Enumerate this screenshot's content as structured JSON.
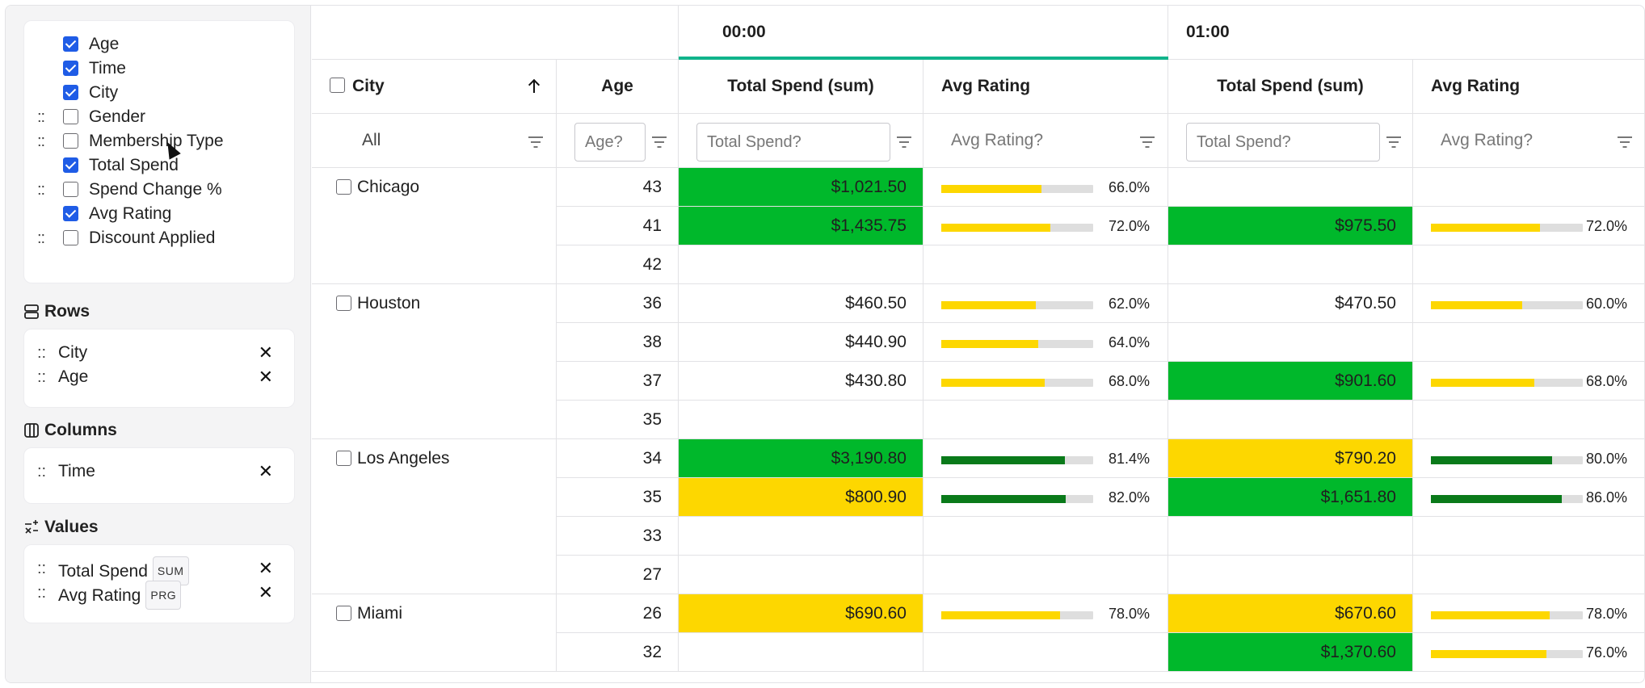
{
  "field_list": [
    {
      "label": "Age",
      "checked": true,
      "grip": false
    },
    {
      "label": "Time",
      "checked": true,
      "grip": false
    },
    {
      "label": "City",
      "checked": true,
      "grip": false
    },
    {
      "label": "Gender",
      "checked": false,
      "grip": true
    },
    {
      "label": "Membership Type",
      "checked": false,
      "grip": true
    },
    {
      "label": "Total Spend",
      "checked": true,
      "grip": false
    },
    {
      "label": "Spend Change %",
      "checked": false,
      "grip": true
    },
    {
      "label": "Avg Rating",
      "checked": true,
      "grip": false
    },
    {
      "label": "Discount Applied",
      "checked": false,
      "grip": true
    }
  ],
  "rows_section": {
    "title": "Rows",
    "items": [
      {
        "label": "City"
      },
      {
        "label": "Age"
      }
    ]
  },
  "columns_section": {
    "title": "Columns",
    "items": [
      {
        "label": "Time"
      }
    ]
  },
  "values_section": {
    "title": "Values",
    "items": [
      {
        "label": "Total Spend",
        "tag": "SUM"
      },
      {
        "label": "Avg Rating",
        "tag": "PRG"
      }
    ]
  },
  "grip_glyph": "::",
  "close_glyph": "✕",
  "grid": {
    "time_groups": [
      "00:00",
      "01:00"
    ],
    "headers": {
      "city": "City",
      "age": "Age",
      "total_spend": "Total Spend (sum)",
      "avg_rating": "Avg Rating"
    },
    "filters": {
      "city": "All",
      "age_placeholder": "Age?",
      "total_spend_placeholder": "Total Spend?",
      "avg_rating_placeholder": "Avg Rating?"
    },
    "colors": {
      "green": "#00b82b",
      "yellow": "#fdd700",
      "bar_yellow": "#fdd700",
      "bar_dark_green": "#0a7a1a",
      "accent": "#10b38b"
    },
    "cities": [
      {
        "name": "Chicago",
        "rows": [
          {
            "age": "43",
            "t0": {
              "spend": "$1,021.50",
              "hl": "green",
              "rating": "66.0%",
              "fill": 0.66,
              "bar": "yellow"
            },
            "t1": {
              "spend": "",
              "hl": "",
              "rating": "",
              "fill": 0,
              "bar": ""
            }
          },
          {
            "age": "41",
            "t0": {
              "spend": "$1,435.75",
              "hl": "green",
              "rating": "72.0%",
              "fill": 0.72,
              "bar": "yellow"
            },
            "t1": {
              "spend": "$975.50",
              "hl": "green",
              "rating": "72.0%",
              "fill": 0.72,
              "bar": "yellow"
            }
          },
          {
            "age": "42",
            "t0": {
              "spend": "",
              "hl": "",
              "rating": "",
              "fill": 0,
              "bar": ""
            },
            "t1": {
              "spend": "",
              "hl": "",
              "rating": "",
              "fill": 0,
              "bar": ""
            }
          }
        ]
      },
      {
        "name": "Houston",
        "rows": [
          {
            "age": "36",
            "t0": {
              "spend": "$460.50",
              "hl": "",
              "rating": "62.0%",
              "fill": 0.62,
              "bar": "yellow"
            },
            "t1": {
              "spend": "$470.50",
              "hl": "",
              "rating": "60.0%",
              "fill": 0.6,
              "bar": "yellow"
            }
          },
          {
            "age": "38",
            "t0": {
              "spend": "$440.90",
              "hl": "",
              "rating": "64.0%",
              "fill": 0.64,
              "bar": "yellow"
            },
            "t1": {
              "spend": "",
              "hl": "",
              "rating": "",
              "fill": 0,
              "bar": ""
            }
          },
          {
            "age": "37",
            "t0": {
              "spend": "$430.80",
              "hl": "",
              "rating": "68.0%",
              "fill": 0.68,
              "bar": "yellow"
            },
            "t1": {
              "spend": "$901.60",
              "hl": "green",
              "rating": "68.0%",
              "fill": 0.68,
              "bar": "yellow"
            }
          },
          {
            "age": "35",
            "t0": {
              "spend": "",
              "hl": "",
              "rating": "",
              "fill": 0,
              "bar": ""
            },
            "t1": {
              "spend": "",
              "hl": "",
              "rating": "",
              "fill": 0,
              "bar": ""
            }
          }
        ]
      },
      {
        "name": "Los Angeles",
        "rows": [
          {
            "age": "34",
            "t0": {
              "spend": "$3,190.80",
              "hl": "green",
              "rating": "81.4%",
              "fill": 0.814,
              "bar": "dark_green"
            },
            "t1": {
              "spend": "$790.20",
              "hl": "yellow",
              "rating": "80.0%",
              "fill": 0.8,
              "bar": "dark_green"
            }
          },
          {
            "age": "35",
            "t0": {
              "spend": "$800.90",
              "hl": "yellow",
              "rating": "82.0%",
              "fill": 0.82,
              "bar": "dark_green"
            },
            "t1": {
              "spend": "$1,651.80",
              "hl": "green",
              "rating": "86.0%",
              "fill": 0.86,
              "bar": "dark_green"
            }
          },
          {
            "age": "33",
            "t0": {
              "spend": "",
              "hl": "",
              "rating": "",
              "fill": 0,
              "bar": ""
            },
            "t1": {
              "spend": "",
              "hl": "",
              "rating": "",
              "fill": 0,
              "bar": ""
            }
          },
          {
            "age": "27",
            "t0": {
              "spend": "",
              "hl": "",
              "rating": "",
              "fill": 0,
              "bar": ""
            },
            "t1": {
              "spend": "",
              "hl": "",
              "rating": "",
              "fill": 0,
              "bar": ""
            }
          }
        ]
      },
      {
        "name": "Miami",
        "rows": [
          {
            "age": "26",
            "t0": {
              "spend": "$690.60",
              "hl": "yellow",
              "rating": "78.0%",
              "fill": 0.78,
              "bar": "yellow"
            },
            "t1": {
              "spend": "$670.60",
              "hl": "yellow",
              "rating": "78.0%",
              "fill": 0.78,
              "bar": "yellow"
            }
          },
          {
            "age": "32",
            "t0": {
              "spend": "",
              "hl": "",
              "rating": "",
              "fill": 0,
              "bar": ""
            },
            "t1": {
              "spend": "$1,370.60",
              "hl": "green",
              "rating": "76.0%",
              "fill": 0.76,
              "bar": "yellow"
            }
          }
        ]
      }
    ]
  }
}
